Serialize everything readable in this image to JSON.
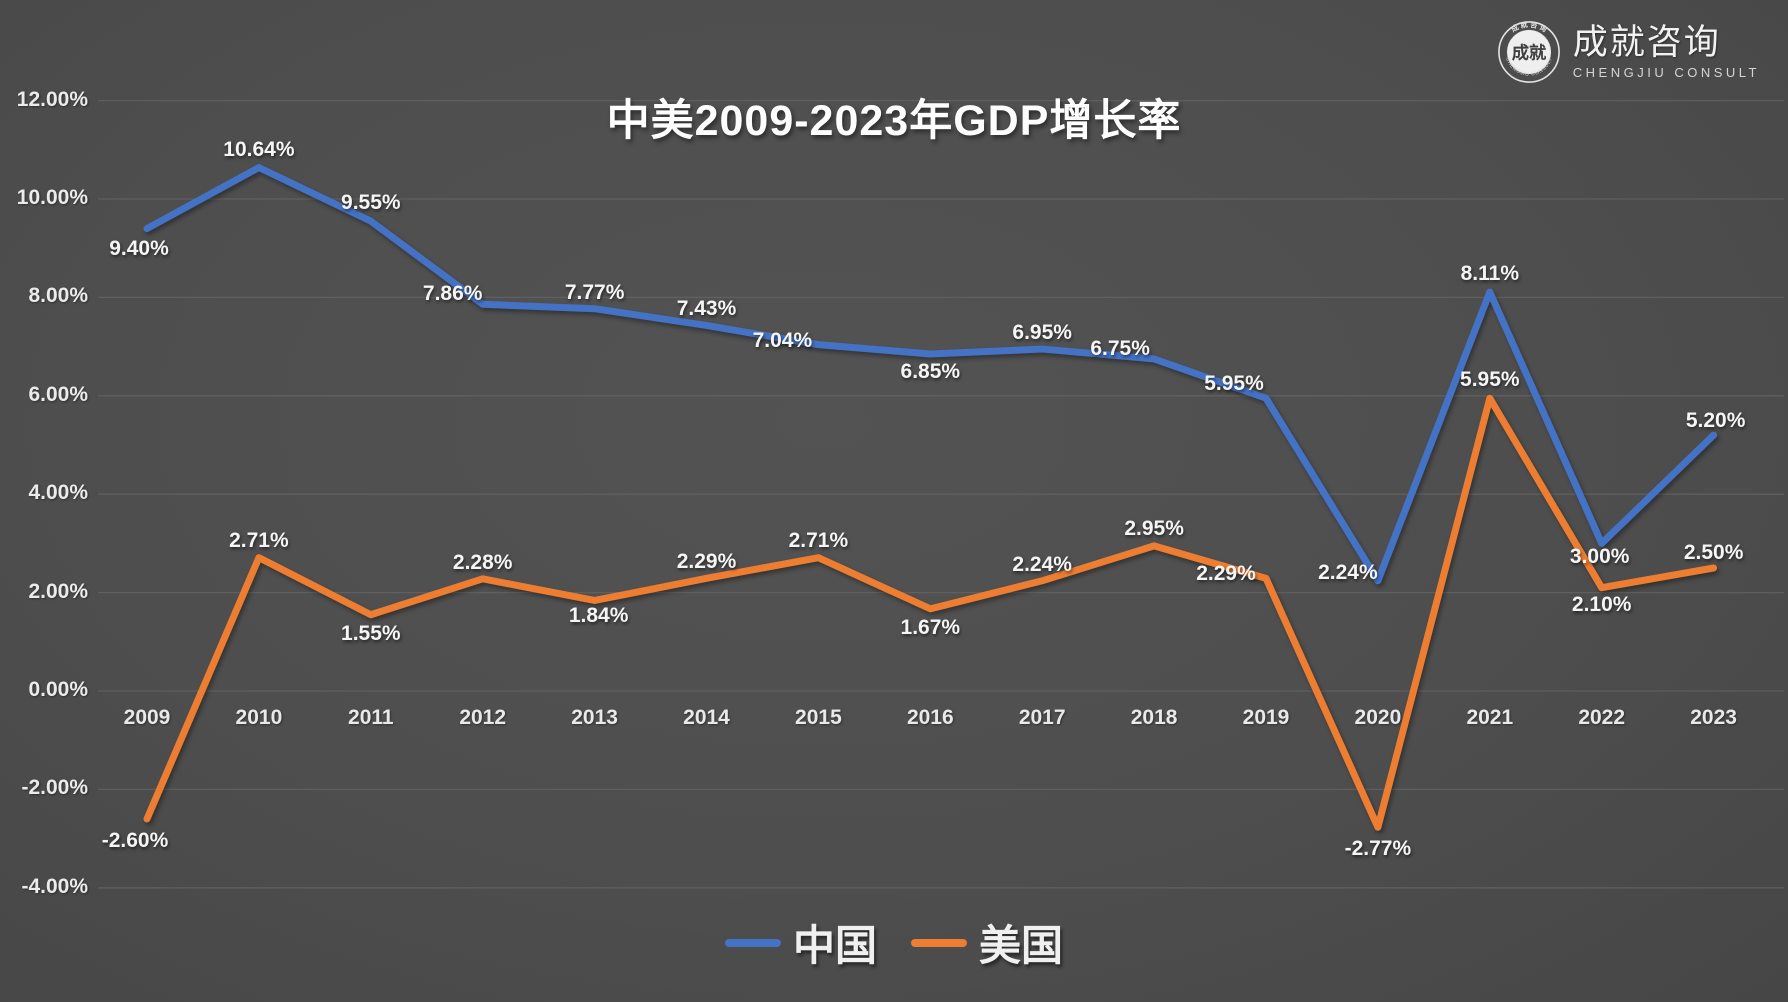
{
  "title": "中美2009-2023年GDP增长率",
  "logo": {
    "company_cn": "成就咨询",
    "company_en": "CHENGJIU CONSULT",
    "seal_center": "成就",
    "seal_arc_top": "成 就 咨 询",
    "seal_arc_bottom": "CHENGJIU CONSULT"
  },
  "chart_data": {
    "type": "line",
    "title": "中美2009-2023年GDP增长率",
    "categories": [
      "2009",
      "2010",
      "2011",
      "2012",
      "2013",
      "2014",
      "2015",
      "2016",
      "2017",
      "2018",
      "2019",
      "2020",
      "2021",
      "2022",
      "2023"
    ],
    "series": [
      {
        "name": "中国",
        "color": "#4472C4",
        "values": [
          9.4,
          10.64,
          9.55,
          7.86,
          7.77,
          7.43,
          7.04,
          6.85,
          6.95,
          6.75,
          5.95,
          2.24,
          8.11,
          3.0,
          5.2
        ],
        "labels": [
          "9.40%",
          "10.64%",
          "9.55%",
          "7.86%",
          "7.77%",
          "7.43%",
          "7.04%",
          "6.85%",
          "6.95%",
          "6.75%",
          "5.95%",
          "2.24%",
          "8.11%",
          "3.00%",
          "5.20%"
        ]
      },
      {
        "name": "美国",
        "color": "#ED7D31",
        "values": [
          -2.6,
          2.71,
          1.55,
          2.28,
          1.84,
          2.29,
          2.71,
          1.67,
          2.24,
          2.95,
          2.29,
          -2.77,
          5.95,
          2.1,
          2.5
        ],
        "labels": [
          "-2.60%",
          "2.71%",
          "1.55%",
          "2.28%",
          "1.84%",
          "2.29%",
          "2.71%",
          "1.67%",
          "2.24%",
          "2.95%",
          "2.29%",
          "-2.77%",
          "5.95%",
          "2.10%",
          "2.50%"
        ]
      }
    ],
    "y_ticks": [
      "12.00%",
      "10.00%",
      "8.00%",
      "6.00%",
      "4.00%",
      "2.00%",
      "0.00%",
      "-2.00%",
      "-4.00%"
    ],
    "ylim": [
      -4,
      12
    ],
    "ytick_step": 2,
    "grid": true,
    "legend_position": "bottom"
  },
  "colors": {
    "background": "#4F4F4F",
    "gridline": "#696969",
    "text": "#EDEDED",
    "series_china": "#4472C4",
    "series_usa": "#ED7D31"
  }
}
